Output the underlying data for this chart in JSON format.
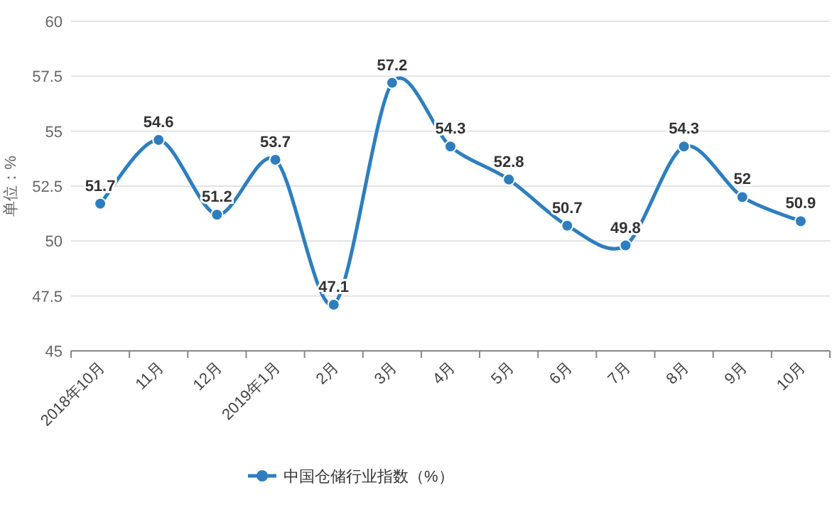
{
  "chart_data": {
    "type": "line",
    "ylabel": "单位：%",
    "categories": [
      "2018年10月",
      "11月",
      "12月",
      "2019年1月",
      "2月",
      "3月",
      "4月",
      "5月",
      "6月",
      "7月",
      "8月",
      "9月",
      "10月"
    ],
    "series": [
      {
        "name": "中国仓储行业指数（%）",
        "color": "#2e7ebf",
        "values": [
          51.7,
          54.6,
          51.2,
          53.7,
          47.1,
          57.2,
          54.3,
          52.8,
          50.7,
          49.8,
          54.3,
          52,
          50.9
        ]
      }
    ],
    "ylim": [
      45,
      60
    ],
    "yticks": [
      45,
      47.5,
      50,
      52.5,
      55,
      57.5,
      60
    ],
    "grid": "y",
    "legend": "bottom",
    "marker": "circle",
    "line_style": "solid",
    "data_labels": true
  }
}
